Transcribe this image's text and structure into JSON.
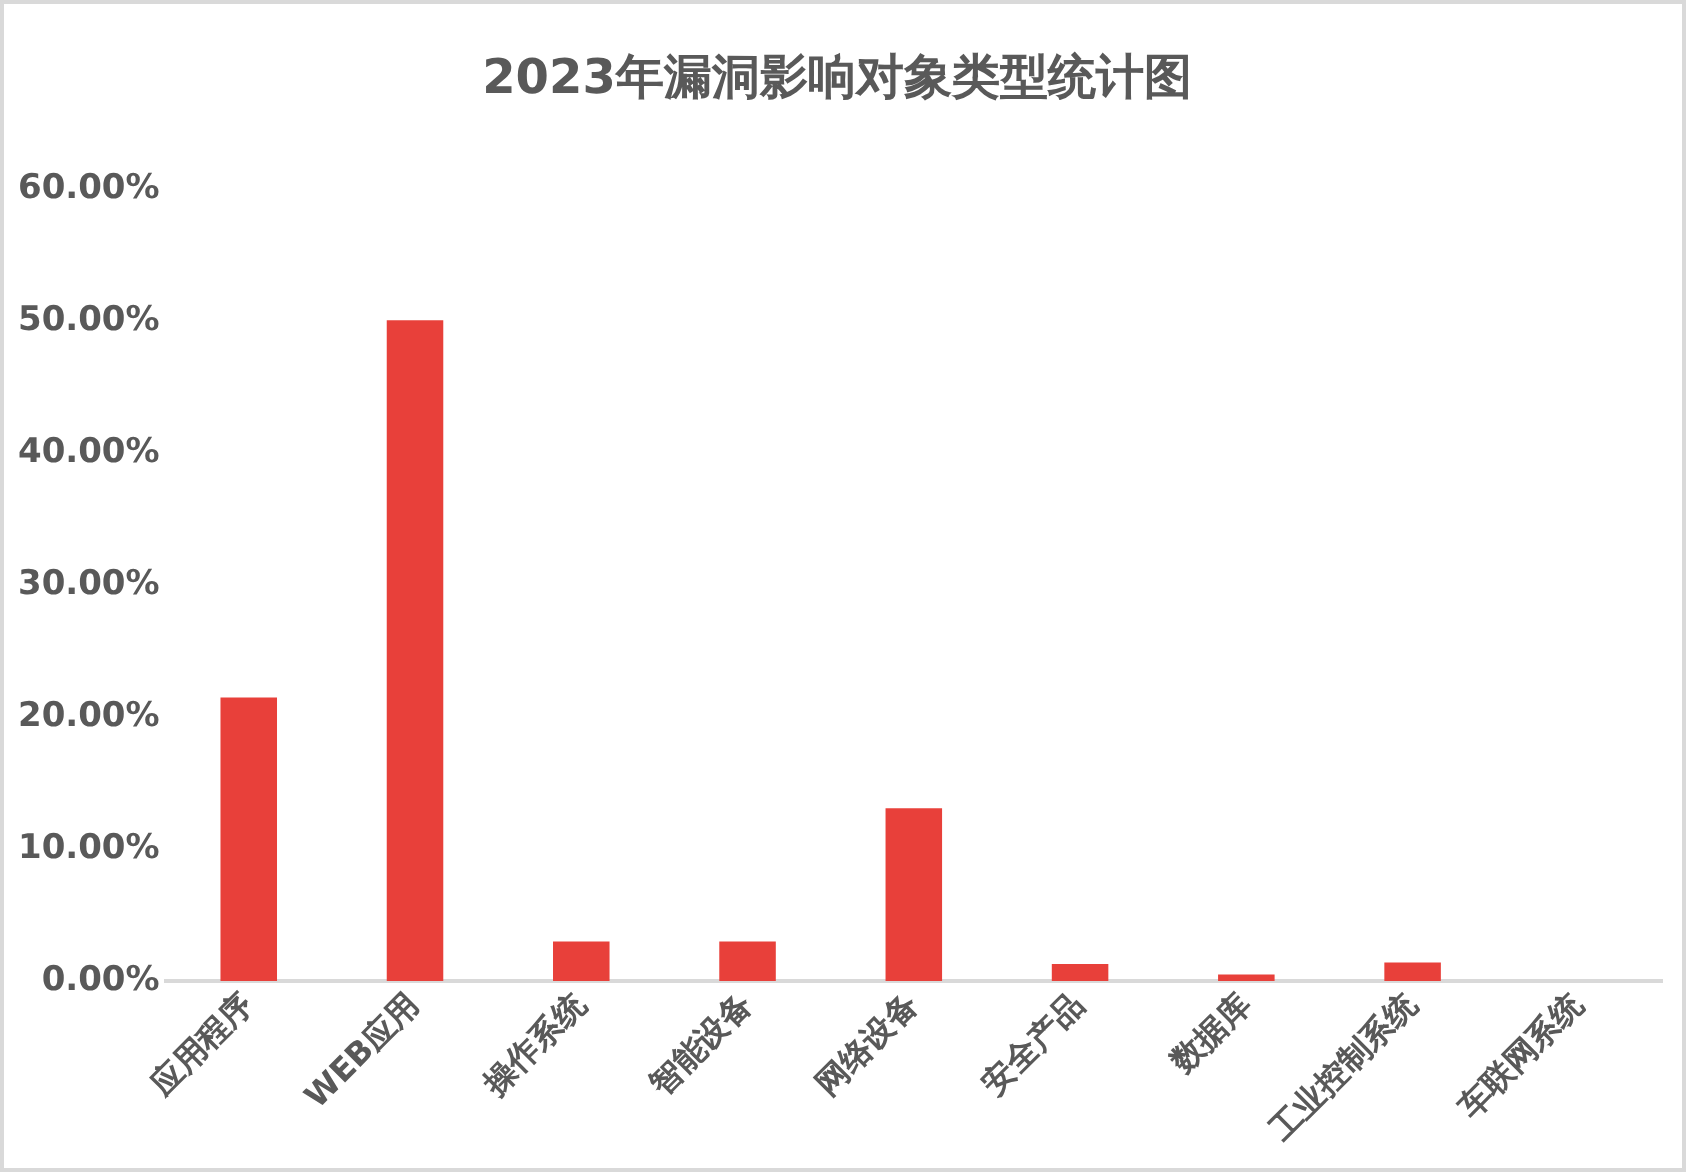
{
  "chart_data": {
    "type": "bar",
    "title": "2023年漏洞影响对象类型统计图",
    "categories": [
      "应用程序",
      "WEB应用",
      "操作系统",
      "智能设备",
      "网络设备",
      "安全产品",
      "数据库",
      "工业控制系统",
      "车联网系统"
    ],
    "values": [
      21.5,
      50.1,
      3.0,
      3.0,
      13.1,
      1.3,
      0.5,
      1.4,
      0
    ],
    "color": "#e8403a",
    "ylim": [
      0,
      60
    ],
    "yticks": [
      {
        "value": 0,
        "label": "0.00%"
      },
      {
        "value": 10,
        "label": "10.00%"
      },
      {
        "value": 20,
        "label": "20.00%"
      },
      {
        "value": 30,
        "label": "30.00%"
      },
      {
        "value": 40,
        "label": "40.00%"
      },
      {
        "value": 50,
        "label": "50.00%"
      },
      {
        "value": 60,
        "label": "60.00%"
      }
    ],
    "grid": false,
    "legend": false
  }
}
